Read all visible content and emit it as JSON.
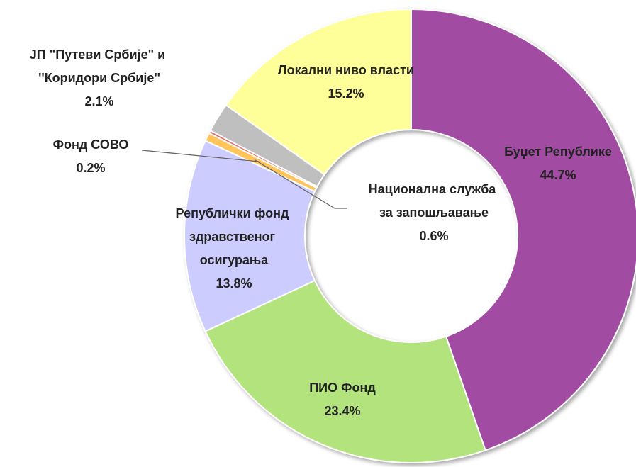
{
  "chart_data": {
    "type": "donut",
    "categories": [
      "Буџет Републике",
      "ПИО Фонд",
      "Републички фонд здравственог осигурања",
      "Национална служба за запошљавање",
      "Фонд СОВО",
      "ЈП \"Путеви Србије\" и ''Коридори Србије''",
      "Локални ниво власти"
    ],
    "values": [
      44.7,
      23.4,
      13.8,
      0.6,
      0.2,
      2.1,
      15.2
    ],
    "value_labels": [
      "44.7%",
      "23.4%",
      "13.8%",
      "0.6%",
      "0.2%",
      "2.1%",
      "15.2%"
    ],
    "colors": [
      "#a24ca3",
      "#b3e37b",
      "#ccccff",
      "#ffc45a",
      "#e46a6a",
      "#bfbfbf",
      "#ffff99"
    ]
  }
}
